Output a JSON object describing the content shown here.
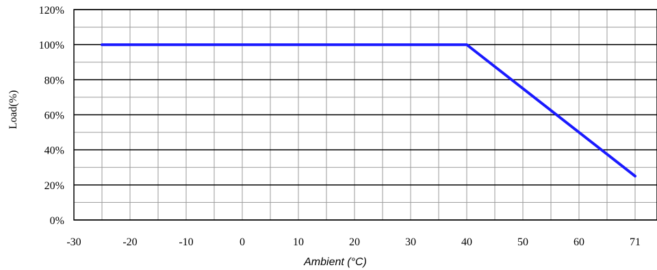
{
  "chart_data": {
    "type": "line",
    "xlabel": "Ambient (°C)",
    "ylabel": "Load(%)",
    "x_ticks": [
      "-30",
      "-20",
      "-10",
      "0",
      "10",
      "20",
      "30",
      "40",
      "50",
      "60",
      "71"
    ],
    "y_ticks": [
      "0%",
      "20%",
      "40%",
      "60%",
      "80%",
      "100%",
      "120%"
    ],
    "xlim": [
      -30,
      71
    ],
    "ylim": [
      0,
      120
    ],
    "grid": true,
    "series": [
      {
        "x": [
          -25,
          40,
          71
        ],
        "y": [
          100,
          100,
          25
        ],
        "color": "#1a1aff"
      }
    ]
  }
}
